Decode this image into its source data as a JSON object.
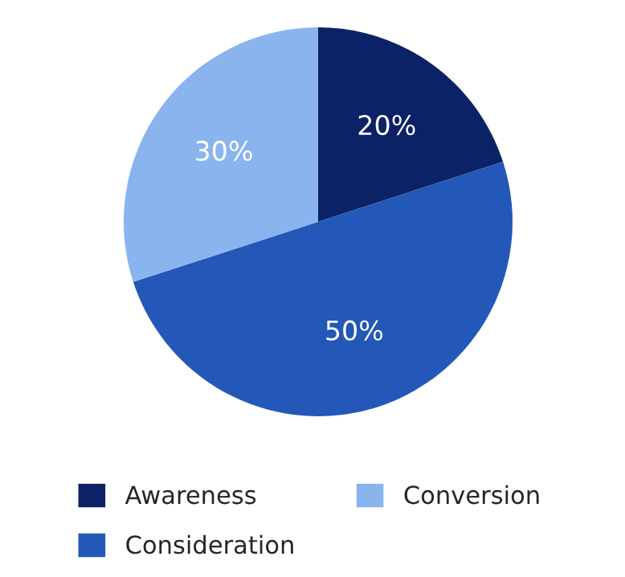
{
  "chart_data": {
    "type": "pie",
    "categories": [
      "Awareness",
      "Consideration",
      "Conversion"
    ],
    "values": [
      20,
      50,
      30
    ],
    "colors": [
      "#0c2266",
      "#2358b8",
      "#8ab4ee"
    ],
    "value_labels": [
      "20%",
      "50%",
      "30%"
    ],
    "legend": "bottom"
  }
}
